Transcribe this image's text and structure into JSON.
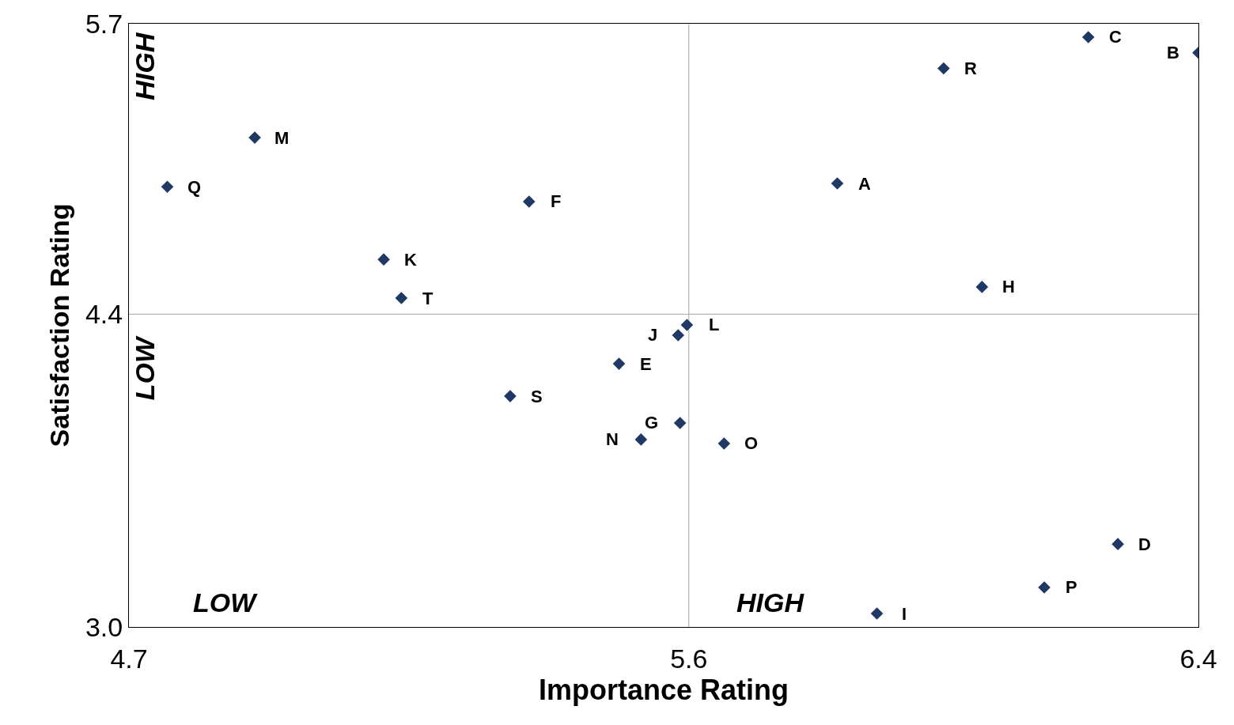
{
  "chart_data": {
    "type": "scatter",
    "xlabel": "Importance Rating",
    "ylabel": "Satisfaction Rating",
    "xlim": [
      4.7,
      6.4
    ],
    "xticks": [
      4.7,
      {
        "value": 5.59,
        "label": "5.6"
      },
      6.4
    ],
    "ylim": [
      3.0,
      5.7
    ],
    "yticks": [
      {
        "value": 3.0,
        "label": "3.0"
      },
      4.4,
      5.7
    ],
    "grid": false,
    "marker": "diamond",
    "series": [
      {
        "color": "#1f3864",
        "x": [
          6.225,
          6.4,
          5.995,
          4.9,
          4.761,
          5.826,
          5.336,
          5.105,
          6.056,
          5.133,
          5.587,
          5.573,
          5.479,
          5.306,
          5.576,
          5.514,
          5.646,
          6.272,
          6.155,
          5.889
        ],
        "values": [
          5.64,
          5.57,
          5.5,
          5.19,
          4.97,
          4.985,
          4.904,
          4.645,
          4.522,
          4.472,
          4.352,
          4.306,
          4.178,
          4.033,
          3.913,
          3.839,
          3.821,
          3.371,
          3.177,
          3.06
        ]
      }
    ],
    "ref_lines": [
      {
        "axis": "x",
        "value": 5.59,
        "color": "#a6a6a6"
      },
      {
        "axis": "y",
        "value": 4.4,
        "color": "#a6a6a6"
      }
    ],
    "annotations": [
      {
        "text": "C",
        "x": 6.225,
        "y": 5.64
      },
      {
        "text": "B",
        "x": 6.4,
        "y": 5.57
      },
      {
        "text": "R",
        "x": 5.995,
        "y": 5.5
      },
      {
        "text": "M",
        "x": 4.9,
        "y": 5.19
      },
      {
        "text": "Q",
        "x": 4.761,
        "y": 4.97
      },
      {
        "text": "A",
        "x": 5.826,
        "y": 4.985
      },
      {
        "text": "F",
        "x": 5.336,
        "y": 4.904
      },
      {
        "text": "K",
        "x": 5.105,
        "y": 4.645
      },
      {
        "text": "H",
        "x": 6.056,
        "y": 4.522
      },
      {
        "text": "T",
        "x": 5.133,
        "y": 4.472
      },
      {
        "text": "L",
        "x": 5.587,
        "y": 4.352
      },
      {
        "text": "J",
        "x": 5.573,
        "y": 4.306
      },
      {
        "text": "E",
        "x": 5.479,
        "y": 4.178
      },
      {
        "text": "S",
        "x": 5.306,
        "y": 4.033
      },
      {
        "text": "G",
        "x": 5.576,
        "y": 3.913
      },
      {
        "text": "N",
        "x": 5.514,
        "y": 3.839
      },
      {
        "text": "O",
        "x": 5.646,
        "y": 3.821
      },
      {
        "text": "D",
        "x": 6.272,
        "y": 3.371
      },
      {
        "text": "P",
        "x": 6.155,
        "y": 3.177
      },
      {
        "text": "I",
        "x": 5.889,
        "y": 3.06
      },
      "HIGH",
      "LOW",
      "LOW",
      "HIGH"
    ]
  }
}
